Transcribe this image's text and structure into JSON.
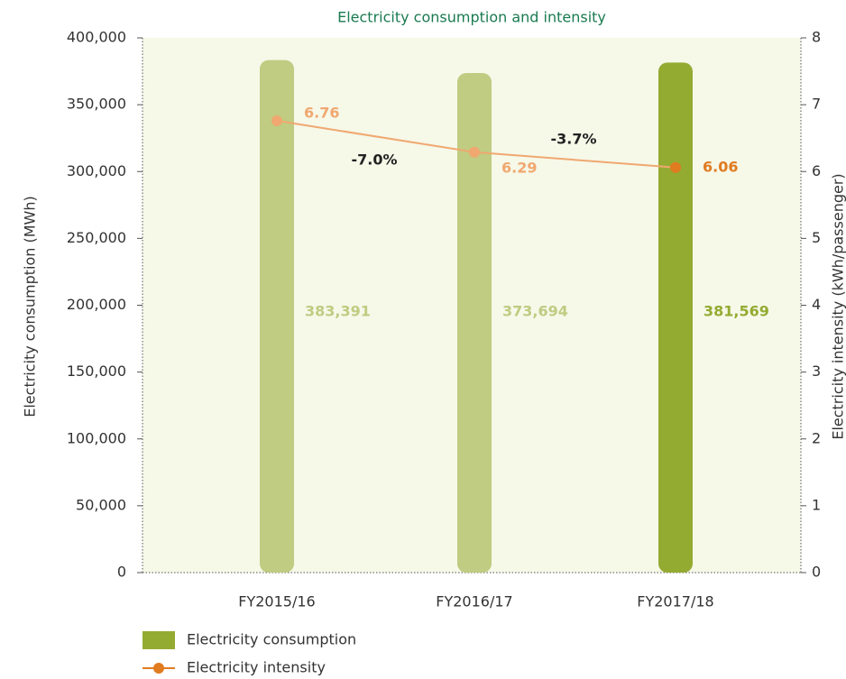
{
  "chart_data": {
    "type": "bar-line",
    "title": "Electricity consumption and intensity",
    "categories": [
      "FY2015/16",
      "FY2016/17",
      "FY2017/18"
    ],
    "series": [
      {
        "name": "Electricity consumption",
        "type": "bar",
        "axis": "y",
        "color": "#94ab32",
        "colors": [
          "#bfcc82",
          "#bfcc82",
          "#94ab32"
        ],
        "values": [
          383391,
          373694,
          381569
        ],
        "value_labels": [
          "383,391",
          "373,694",
          "381,569"
        ]
      },
      {
        "name": "Electricity intensity",
        "type": "line",
        "axis": "y2",
        "color": "#f0a870",
        "colors": [
          "#f0a870",
          "#f0a870",
          "#e07b20"
        ],
        "values": [
          6.76,
          6.29,
          6.06
        ]
      }
    ],
    "annotations": [
      "-7.0%",
      "-3.7%"
    ],
    "ylabel": "Electricity consumption (MWh)",
    "y2label": "Electricity intensity (kWh/passenger)",
    "ylim": [
      0,
      400000
    ],
    "yticks": [
      0,
      {
        "value": 50000,
        "label": "50,000"
      },
      {
        "value": 100000,
        "label": "100,000"
      },
      {
        "value": 150000,
        "label": "150,000"
      },
      {
        "value": 200000,
        "label": "200,000"
      },
      {
        "value": 250000,
        "label": "250,000"
      },
      {
        "value": 300000,
        "label": "300,000"
      },
      {
        "value": 350000,
        "label": "350,000"
      },
      {
        "value": 400000,
        "label": "400,000"
      }
    ],
    "y2lim": [
      0,
      8
    ],
    "y2ticks": [
      0,
      1,
      2,
      3,
      4,
      5,
      6,
      7,
      8
    ],
    "grid": false
  }
}
